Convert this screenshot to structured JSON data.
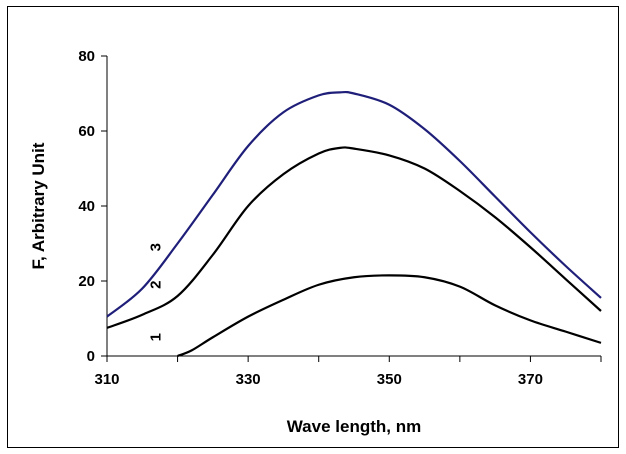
{
  "chart_data": {
    "type": "line",
    "title": "",
    "xlabel": "Wave length, nm",
    "ylabel": "F, Arbitrary Unit",
    "xlim": [
      310,
      380
    ],
    "ylim": [
      0,
      80
    ],
    "x_ticks": [
      310,
      330,
      350,
      370
    ],
    "y_ticks": [
      0,
      20,
      40,
      60,
      80
    ],
    "grid": false,
    "legend": "none",
    "series": [
      {
        "name": "1",
        "color": "#000000",
        "points": [
          [
            320,
            0
          ],
          [
            322,
            1.5
          ],
          [
            325,
            5
          ],
          [
            330,
            10.5
          ],
          [
            335,
            15
          ],
          [
            340,
            19
          ],
          [
            345,
            21
          ],
          [
            350,
            21.5
          ],
          [
            355,
            21
          ],
          [
            360,
            18.5
          ],
          [
            365,
            13.5
          ],
          [
            370,
            9.5
          ],
          [
            375,
            6.5
          ],
          [
            380,
            3.5
          ]
        ]
      },
      {
        "name": "2",
        "color": "#000000",
        "points": [
          [
            310,
            7.5
          ],
          [
            315,
            11
          ],
          [
            320,
            16
          ],
          [
            325,
            27
          ],
          [
            330,
            40
          ],
          [
            335,
            48.5
          ],
          [
            340,
            54
          ],
          [
            343,
            55.5
          ],
          [
            345,
            55.3
          ],
          [
            350,
            53.5
          ],
          [
            355,
            50
          ],
          [
            360,
            44
          ],
          [
            365,
            37
          ],
          [
            370,
            29
          ],
          [
            375,
            20.5
          ],
          [
            380,
            12
          ]
        ]
      },
      {
        "name": "3",
        "color": "#1f1f7a",
        "points": [
          [
            310,
            10.5
          ],
          [
            315,
            18
          ],
          [
            320,
            30
          ],
          [
            325,
            43
          ],
          [
            330,
            56
          ],
          [
            335,
            65
          ],
          [
            340,
            69.5
          ],
          [
            343,
            70.3
          ],
          [
            345,
            70
          ],
          [
            350,
            67
          ],
          [
            355,
            60.5
          ],
          [
            360,
            52
          ],
          [
            365,
            42.5
          ],
          [
            370,
            33
          ],
          [
            375,
            24
          ],
          [
            380,
            15.5
          ]
        ]
      }
    ],
    "curve_labels": [
      {
        "text": "1",
        "x": 317,
        "y": 5
      },
      {
        "text": "2",
        "x": 317,
        "y": 19
      },
      {
        "text": "3",
        "x": 317,
        "y": 29
      }
    ]
  }
}
